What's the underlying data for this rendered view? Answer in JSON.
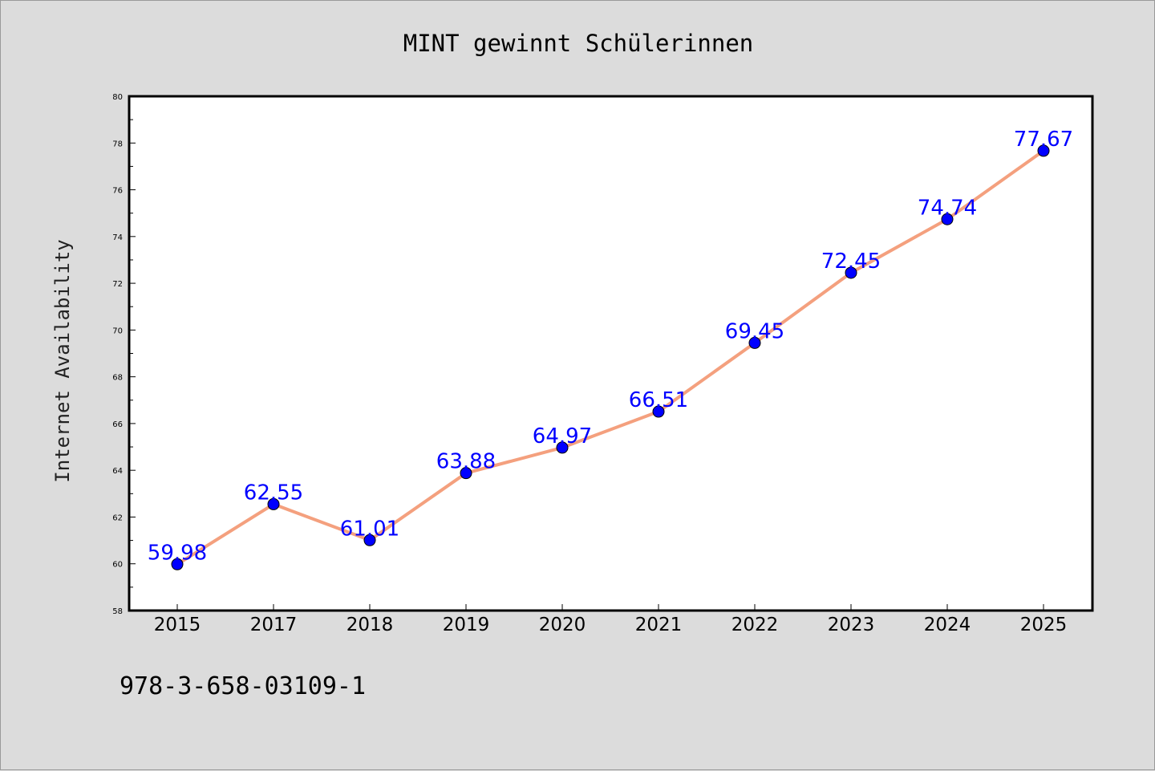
{
  "chart_data": {
    "type": "line",
    "title": "MINT gewinnt Schülerinnen",
    "xlabel": "",
    "ylabel": "Internet Availability",
    "categories": [
      "2015",
      "2017",
      "2018",
      "2019",
      "2020",
      "2021",
      "2022",
      "2023",
      "2024",
      "2025"
    ],
    "series": [
      {
        "values": [
          59.98,
          62.55,
          61.01,
          63.88,
          64.97,
          66.51,
          69.45,
          72.45,
          74.74,
          77.67
        ],
        "labels": [
          "59.98",
          "62.55",
          "61.01",
          "63.88",
          "64.97",
          "66.51",
          "69.45",
          "72.45",
          "74.74",
          "77.67"
        ],
        "line_color": "#f4a07e",
        "marker_color": "#0000ff"
      }
    ],
    "ylim": [
      58,
      80
    ],
    "yticks": [
      "58",
      "60",
      "62",
      "64",
      "66",
      "68",
      "70",
      "72",
      "74",
      "76",
      "78",
      "80"
    ],
    "grid": false,
    "legend": "none"
  },
  "footer": {
    "isbn": "978-3-658-03109-1"
  },
  "colors": {
    "background": "#dcdcdc",
    "plot_background": "#ffffff",
    "label_color": "#0000ff"
  }
}
